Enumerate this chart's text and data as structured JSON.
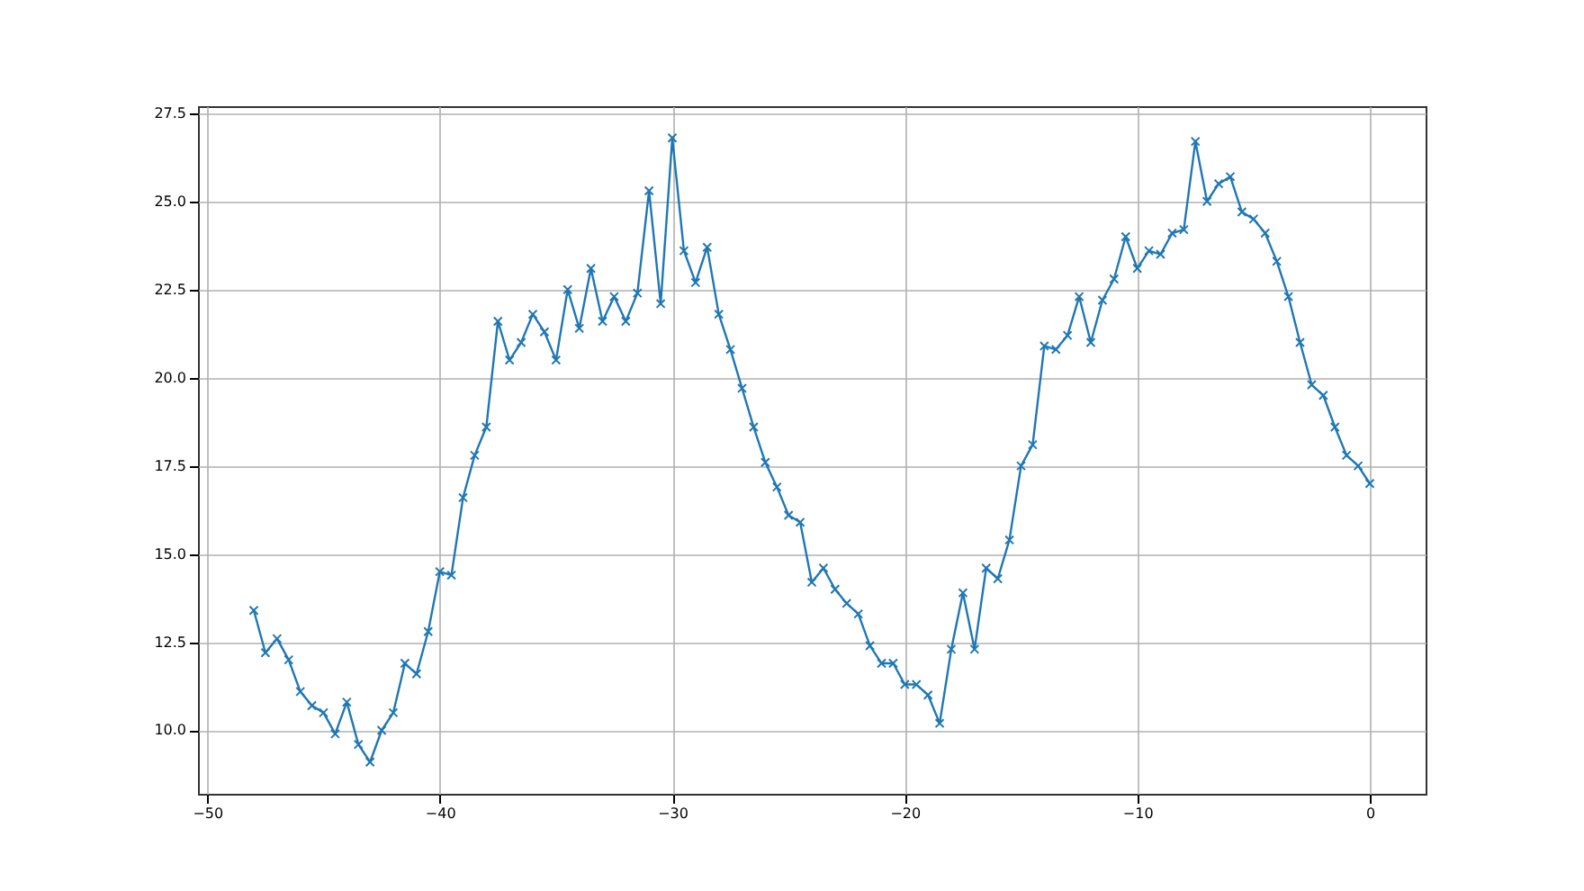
{
  "chart_data": {
    "type": "line",
    "marker": "cross",
    "grid": true,
    "line_style": "solid",
    "xlim": [
      -50.4,
      2.4
    ],
    "ylim": [
      8.2,
      27.7
    ],
    "xticks": [
      {
        "value": -50,
        "label": "−50"
      },
      {
        "value": -40,
        "label": "−40"
      },
      {
        "value": -30,
        "label": "−30"
      },
      {
        "value": -20,
        "label": "−20"
      },
      {
        "value": -10,
        "label": "−10"
      },
      0
    ],
    "yticks": [
      {
        "value": 10,
        "label": "10.0"
      },
      12.5,
      {
        "value": 15,
        "label": "15.0"
      },
      17.5,
      {
        "value": 20,
        "label": "20.0"
      },
      22.5,
      {
        "value": 25,
        "label": "25.0"
      },
      27.5
    ],
    "x": [
      -48,
      -47.5,
      -47,
      -46.5,
      -46,
      -45.5,
      -45,
      -44.5,
      -44,
      -43.5,
      -43,
      -42.5,
      -42,
      -41.5,
      -41,
      -40.5,
      -40,
      -39.5,
      -39,
      -38.5,
      -38,
      -37.5,
      -37,
      -36.5,
      -36,
      -35.5,
      -35,
      -34.5,
      -34,
      -33.5,
      -33,
      -32.5,
      -32,
      -31.5,
      -31,
      -30.5,
      -30,
      -29.5,
      -29,
      -28.5,
      -28,
      -27.5,
      -27,
      -26.5,
      -26,
      -25.5,
      -25,
      -24.5,
      -24,
      -23.5,
      -23,
      -22.5,
      -22,
      -21.5,
      -21,
      -20.5,
      -20,
      -19.5,
      -19,
      -18.5,
      -18,
      -17.5,
      -17,
      -16.5,
      -16,
      -15.5,
      -15,
      -14.5,
      -14,
      -13.5,
      -13,
      -12.5,
      -12,
      -11.5,
      -11,
      -10.5,
      -10,
      -9.5,
      -9,
      -8.5,
      -8,
      -7.5,
      -7,
      -6.5,
      -6,
      -5.5,
      -5,
      -4.5,
      -4,
      -3.5,
      -3,
      -2.5,
      -2,
      -1.5,
      -1,
      -0.5,
      0
    ],
    "series": [
      {
        "color": "#1f77b4",
        "values": [
          13.4,
          12.2,
          12.6,
          12.0,
          11.1,
          10.7,
          10.5,
          9.9,
          10.8,
          9.6,
          9.1,
          10.0,
          10.5,
          11.9,
          11.6,
          12.8,
          14.5,
          14.4,
          16.6,
          17.8,
          18.6,
          21.6,
          20.5,
          21.0,
          21.8,
          21.3,
          20.5,
          22.5,
          21.4,
          23.1,
          21.6,
          22.3,
          21.6,
          22.4,
          25.3,
          22.1,
          26.8,
          23.6,
          22.7,
          23.7,
          21.8,
          20.8,
          19.7,
          18.6,
          17.6,
          16.9,
          16.1,
          15.9,
          14.2,
          14.6,
          14.0,
          13.6,
          13.3,
          12.4,
          11.9,
          11.9,
          11.3,
          11.3,
          11.0,
          10.2,
          12.3,
          13.9,
          12.3,
          14.6,
          14.3,
          15.4,
          17.5,
          18.1,
          20.9,
          20.8,
          21.2,
          22.3,
          21.0,
          22.2,
          22.8,
          24.0,
          23.1,
          23.6,
          23.5,
          24.1,
          24.2,
          26.7,
          25.0,
          25.5,
          25.7,
          24.7,
          24.5,
          24.1,
          23.3,
          22.3,
          21.0,
          19.8,
          19.5,
          18.6,
          17.8,
          17.5,
          17.0
        ]
      }
    ]
  }
}
